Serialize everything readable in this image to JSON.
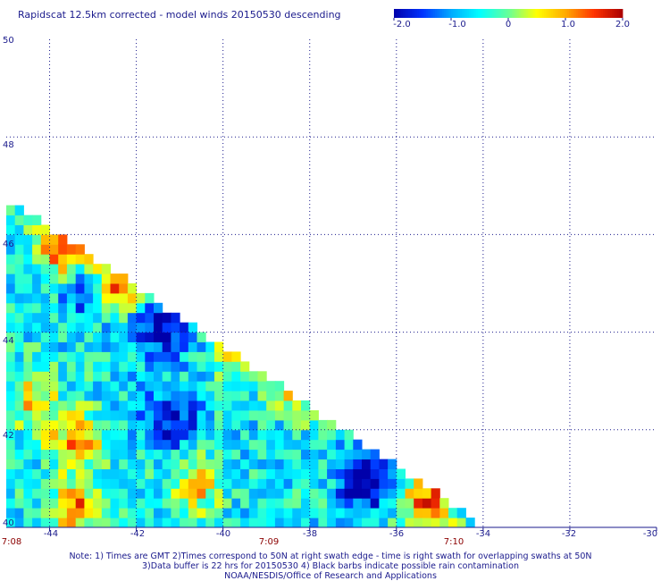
{
  "header": {
    "title": "Rapidscat 12.5km corrected - model winds 20150530 descending"
  },
  "colorbar": {
    "ticks": [
      "-2.0",
      "-1.0",
      "0",
      "1.0",
      "2.0"
    ],
    "tick_values": [
      -2.0,
      -1.0,
      0,
      1.0,
      2.0
    ],
    "range": [
      -2.0,
      2.0
    ],
    "colors": [
      "#0000aa",
      "#0033ff",
      "#00aaff",
      "#00ffff",
      "#66ff99",
      "#ffff00",
      "#ffaa00",
      "#ff3300",
      "#aa0000"
    ]
  },
  "axes": {
    "lat_ticks": [
      "50",
      "48",
      "46",
      "44",
      "42",
      "40"
    ],
    "lon_ticks": [
      "-44",
      "-42",
      "-40",
      "-38",
      "-36",
      "-34",
      "-32",
      "-30"
    ],
    "time_ticks": [
      "7:08",
      "7:09",
      "7:10"
    ]
  },
  "notes": {
    "line1": "Note: 1) Times are GMT 2)Times correspond to 50N at right swath edge - time is right swath for overlapping swaths at 50N",
    "line2": "3)Data buffer is 22 hrs for 20150530 4) Black barbs indicate possible rain contamination",
    "line3": "NOAA/NESDIS/Office of Research and Applications"
  },
  "chart_data": {
    "type": "heatmap",
    "title": "Rapidscat 12.5km corrected - model winds 20150530 descending",
    "x_axis": "longitude",
    "y_axis": "latitude",
    "xlim": [
      -45,
      -30
    ],
    "ylim": [
      40,
      50
    ],
    "grid": true,
    "colorbar_range": [
      -2.0,
      2.0
    ],
    "colorbar_ticks": [
      -2.0,
      -1.0,
      0,
      1.0,
      2.0
    ],
    "swath_edge": [
      [
        -45,
        46.6
      ],
      [
        -34.2,
        40
      ]
    ],
    "features": [
      {
        "lon": -43.8,
        "lat": 45.7,
        "value": 2.0
      },
      {
        "lon": -42.6,
        "lat": 45.0,
        "value": 2.0
      },
      {
        "lon": -43.2,
        "lat": 44.8,
        "value": -1.8
      },
      {
        "lon": -41.5,
        "lat": 44.0,
        "value": -2.0
      },
      {
        "lon": -39.6,
        "lat": 43.6,
        "value": 1.2
      },
      {
        "lon": -38.2,
        "lat": 42.9,
        "value": 1.4
      },
      {
        "lon": -41.3,
        "lat": 42.1,
        "value": -1.8
      },
      {
        "lon": -36.8,
        "lat": 40.8,
        "value": -2.0
      },
      {
        "lon": -43.5,
        "lat": 41.7,
        "value": 1.1
      },
      {
        "lon": -44.5,
        "lat": 42.5,
        "value": 0.9
      },
      {
        "lon": -40.7,
        "lat": 40.8,
        "value": 0.9
      },
      {
        "lon": -43.5,
        "lat": 40.3,
        "value": 1.3
      },
      {
        "lon": -35.4,
        "lat": 40.4,
        "value": 1.6
      }
    ]
  }
}
